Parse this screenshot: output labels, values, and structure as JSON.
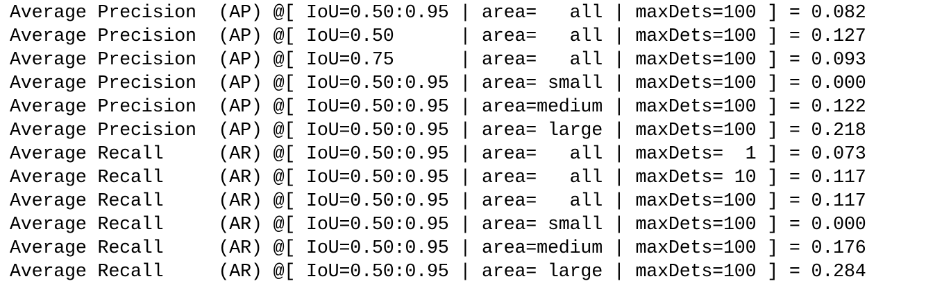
{
  "lines": [
    "Average Precision  (AP) @[ IoU=0.50:0.95 | area=   all | maxDets=100 ] = 0.082",
    "Average Precision  (AP) @[ IoU=0.50      | area=   all | maxDets=100 ] = 0.127",
    "Average Precision  (AP) @[ IoU=0.75      | area=   all | maxDets=100 ] = 0.093",
    "Average Precision  (AP) @[ IoU=0.50:0.95 | area= small | maxDets=100 ] = 0.000",
    "Average Precision  (AP) @[ IoU=0.50:0.95 | area=medium | maxDets=100 ] = 0.122",
    "Average Precision  (AP) @[ IoU=0.50:0.95 | area= large | maxDets=100 ] = 0.218",
    "Average Recall     (AR) @[ IoU=0.50:0.95 | area=   all | maxDets=  1 ] = 0.073",
    "Average Recall     (AR) @[ IoU=0.50:0.95 | area=   all | maxDets= 10 ] = 0.117",
    "Average Recall     (AR) @[ IoU=0.50:0.95 | area=   all | maxDets=100 ] = 0.117",
    "Average Recall     (AR) @[ IoU=0.50:0.95 | area= small | maxDets=100 ] = 0.000",
    "Average Recall     (AR) @[ IoU=0.50:0.95 | area=medium | maxDets=100 ] = 0.176",
    "Average Recall     (AR) @[ IoU=0.50:0.95 | area= large | maxDets=100 ] = 0.284"
  ]
}
